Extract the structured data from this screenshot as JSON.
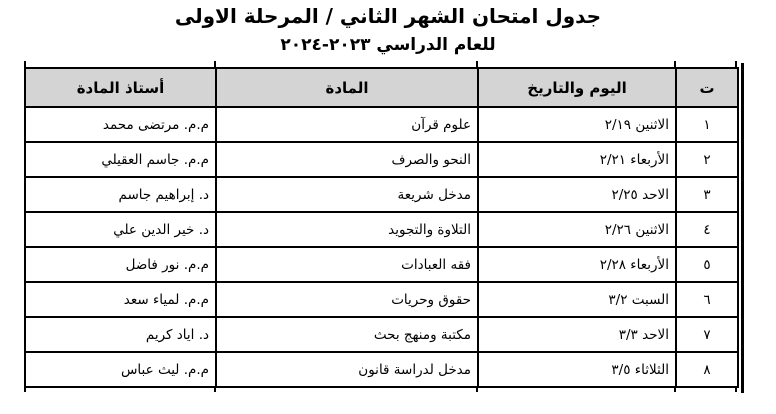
{
  "page": {
    "title_line1": "جدول امتحان الشهر الثاني / المرحلة الاولى",
    "title_line2": "للعام الدراسي ٢٠٢٣-٢٠٢٤"
  },
  "table": {
    "headers": {
      "num": "ت",
      "day_date": "اليوم والتاريخ",
      "subject": "المادة",
      "teacher": "أستاذ المادة"
    },
    "rows": [
      {
        "num": "١",
        "day_date": "الاثنين ٢/١٩",
        "subject": "علوم قرآن",
        "teacher": "م.م. مرتضى محمد"
      },
      {
        "num": "٢",
        "day_date": "الأربعاء ٢/٢١",
        "subject": "النحو والصرف",
        "teacher": "م.م. جاسم العقيلي"
      },
      {
        "num": "٣",
        "day_date": "الاحد ٢/٢٥",
        "subject": "مدخل شريعة",
        "teacher": "د. إبراهيم جاسم"
      },
      {
        "num": "٤",
        "day_date": "الاثنين ٢/٢٦",
        "subject": "التلاوة والتجويد",
        "teacher": "د. خير الدين علي"
      },
      {
        "num": "٥",
        "day_date": "الأربعاء ٢/٢٨",
        "subject": "فقه العبادات",
        "teacher": "م.م. نور فاضل"
      },
      {
        "num": "٦",
        "day_date": "السبت ٣/٢",
        "subject": "حقوق وحريات",
        "teacher": "م.م. لمياء سعد"
      },
      {
        "num": "٧",
        "day_date": "الاحد ٣/٣",
        "subject": "مكتبة ومنهج بحث",
        "teacher": "د. اياد كريم"
      },
      {
        "num": "٨",
        "day_date": "الثلاثاء ٣/٥",
        "subject": "مدخل لدراسة قانون",
        "teacher": "م.م. ليث عباس"
      }
    ]
  },
  "colors": {
    "header_fill": "#d4d4d4",
    "border": "#000000",
    "text": "#000000",
    "background": "#ffffff"
  }
}
